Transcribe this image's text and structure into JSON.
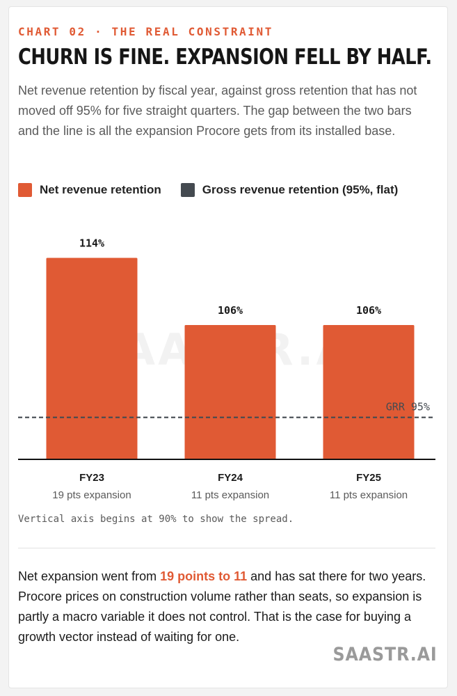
{
  "header": {
    "eyebrow": "CHART 02 · THE REAL CONSTRAINT",
    "title": "CHURN IS FINE. EXPANSION FELL BY HALF.",
    "subtitle": "Net revenue retention by fiscal year, against gross retention that has not moved off 95% for five straight quarters. The gap between the two bars and the line is all the expansion Procore gets from its installed base."
  },
  "legend": [
    {
      "label": "Net revenue retention",
      "color": "#e05a34"
    },
    {
      "label": "Gross revenue retention (95%, flat)",
      "color": "#444a50"
    }
  ],
  "chart_data": {
    "type": "bar",
    "categories": [
      "FY23",
      "FY24",
      "FY25"
    ],
    "subcategories": [
      "19 pts expansion",
      "11 pts expansion",
      "11 pts expansion"
    ],
    "series": [
      {
        "name": "Net revenue retention",
        "values": [
          114,
          106,
          106
        ],
        "labels": [
          "114%",
          "106%",
          "106%"
        ],
        "color": "#e05a34"
      }
    ],
    "reference_line": {
      "label": "GRR 95%",
      "value": 95,
      "color": "#444a50",
      "style": "dashed"
    },
    "ylim": [
      90,
      115
    ],
    "grid": false,
    "watermark": "SAASTR.AI",
    "axis_note": "Vertical axis begins at 90% to show the spread."
  },
  "takeaway": {
    "before": "Net expansion went from ",
    "highlight": "19 points to 11",
    "after": " and has sat there for two years. Procore prices on construction volume rather than seats, so expansion is partly a macro variable it does not control. That is the case for buying a growth vector instead of waiting for one."
  },
  "brand": "SAASTR.AI"
}
